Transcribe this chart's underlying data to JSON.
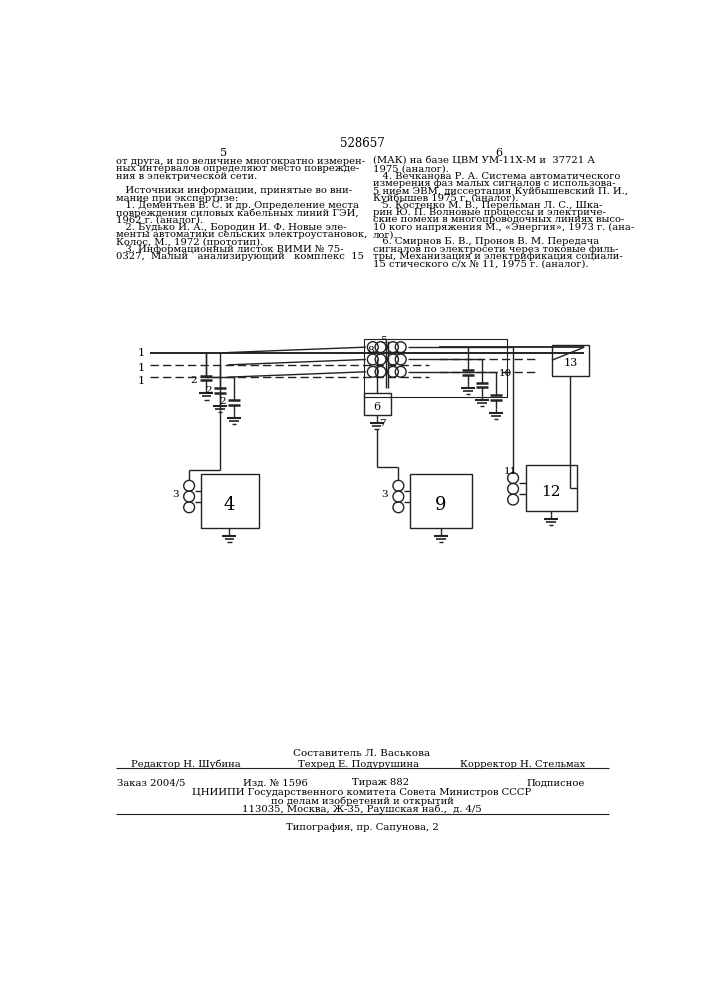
{
  "patent_number": "528657",
  "page_left": "5",
  "page_right": "6",
  "background_color": "#ffffff",
  "left_col": [
    "от друга, и по величине многократно измерен-",
    "ных интервалов определяют место поврежде-",
    "ния в электрической сети.",
    "",
    "   Источники информации, принятые во вни-",
    "мание при экспертизе:",
    "   1. Дементьев В. С. и др. Определение места",
    "повреждения силовых кабельных линий ГЭИ,",
    "1962 г. (аналог).",
    "   2. Будько И. А., Бородин И. Ф. Новые эле-",
    "менты автоматики сельских электроустановок,",
    "Колос, М., 1972 (прототип).",
    "   3. Информационный листок ВИМИ № 75-",
    "0327,  Малый   анализирующий   комплекс  15"
  ],
  "right_col": [
    "(МАК) на базе ЦВМ УМ-11Х-М и  37721 А",
    "1975 (аналог).",
    "   4. Вечканова Р. А. Система автоматического",
    "измерения фаз малых сигналов с использова-",
    "5 нием ЭВМ, диссертация Куйбышевский П. И.,",
    "Куйбышев 1975 г. (аналог).",
    "   5. Костенко М. В., Перельман Л. С., Шка-",
    "рин Ю. П. Волновые процессы и электриче-",
    "ские помехи в многопроводочных линиях высо-",
    "10 кого напряжения М., «Энергия», 1973 г. (ана-",
    "лог).",
    "   6. Смирнов Б. В., Пронов В. М. Передача",
    "сигналов по электросети через токовые филь-",
    "тры, Механизация и электрификация социали-",
    "15 стического с/х № 11, 1975 г. (аналог)."
  ],
  "footer_composer": "Составитель Л. Васькова",
  "footer_editor": "Редактор Н. Шубина",
  "footer_tech": "Техред Е. Подурушина",
  "footer_corrector": "Корректор Н. Стельмах",
  "footer_order": "Заказ 2004/5",
  "footer_izd": "Изд. № 1596",
  "footer_tirazh": "Тираж 882",
  "footer_podpis": "Подписное",
  "footer_org": "ЦНИИПИ Государственного комитета Совета Министров СССР",
  "footer_dept": "по делам изобретений и открытий",
  "footer_addr": "113035, Москва, Ж-35, Раушская наб.,  д. 4/5",
  "footer_print": "Типография, пр. Сапунова, 2"
}
